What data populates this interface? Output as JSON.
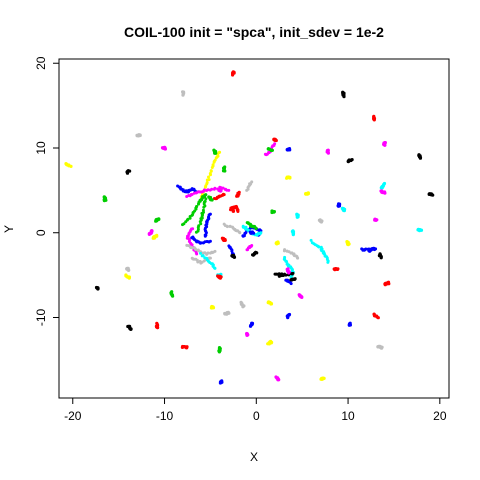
{
  "chart_data": {
    "type": "scatter",
    "title": "COIL-100 init = \"spca\", init_sdev = 1e-2",
    "xlabel": "X",
    "ylabel": "Y",
    "xlim": [
      -21.5,
      21
    ],
    "ylim": [
      -19.5,
      20.5
    ],
    "xticks": [
      -20,
      -10,
      0,
      10,
      20
    ],
    "yticks": [
      -10,
      0,
      10,
      20
    ],
    "xtick_labels": [
      "-20",
      "-10",
      "0",
      "10",
      "20"
    ],
    "ytick_labels": [
      "-10",
      "0",
      "10",
      "20"
    ],
    "grid": false,
    "legend": "none",
    "colors": {
      "black": "#000000",
      "red": "#ff0000",
      "green": "#00cd00",
      "blue": "#0000ff",
      "cyan": "#00ffff",
      "magenta": "#ff00ff",
      "yellow": "#ffff00",
      "gray": "#bebebe"
    },
    "clusters": [
      {
        "x": -2.5,
        "y": 18.8,
        "color": "red"
      },
      {
        "x": -8,
        "y": 16.5,
        "color": "gray"
      },
      {
        "x": 9.5,
        "y": 16.3,
        "color": "black"
      },
      {
        "x": 12.8,
        "y": 13.5,
        "color": "red"
      },
      {
        "x": -12.8,
        "y": 11.5,
        "color": "gray"
      },
      {
        "x": 2,
        "y": 11,
        "color": "red"
      },
      {
        "x": -10,
        "y": 10,
        "color": "magenta"
      },
      {
        "x": -4.5,
        "y": 9.5,
        "color": "green"
      },
      {
        "x": 1.5,
        "y": 9.8,
        "color": "green"
      },
      {
        "x": 3.5,
        "y": 9.8,
        "color": "blue"
      },
      {
        "x": 7.8,
        "y": 9.6,
        "color": "magenta"
      },
      {
        "x": 14,
        "y": 10.5,
        "color": "magenta"
      },
      {
        "x": 10.2,
        "y": 8.5,
        "color": "black"
      },
      {
        "x": 17.8,
        "y": 9,
        "color": "black"
      },
      {
        "x": -20.5,
        "y": 8,
        "color": "yellow"
      },
      {
        "x": -14,
        "y": 7.2,
        "color": "black"
      },
      {
        "x": -3.5,
        "y": 7.5,
        "color": "green"
      },
      {
        "x": 3.5,
        "y": 6.5,
        "color": "yellow"
      },
      {
        "x": 13.8,
        "y": 5.5,
        "color": "cyan"
      },
      {
        "x": 19,
        "y": 4.5,
        "color": "black"
      },
      {
        "x": -16.5,
        "y": 4,
        "color": "green"
      },
      {
        "x": -4,
        "y": 5,
        "color": "magenta"
      },
      {
        "x": -2,
        "y": 4.5,
        "color": "red"
      },
      {
        "x": 5.5,
        "y": 4.6,
        "color": "yellow"
      },
      {
        "x": 13.8,
        "y": 4.8,
        "color": "magenta"
      },
      {
        "x": -5,
        "y": 4,
        "color": "green"
      },
      {
        "x": 9,
        "y": 3.2,
        "color": "blue"
      },
      {
        "x": 9.5,
        "y": 2.8,
        "color": "cyan"
      },
      {
        "x": -2.5,
        "y": 2.8,
        "color": "red"
      },
      {
        "x": 1.8,
        "y": 2.5,
        "color": "green"
      },
      {
        "x": -10.8,
        "y": 1.5,
        "color": "green"
      },
      {
        "x": 4.5,
        "y": 2,
        "color": "cyan"
      },
      {
        "x": 7,
        "y": 1.4,
        "color": "gray"
      },
      {
        "x": 13,
        "y": 1.5,
        "color": "magenta"
      },
      {
        "x": -11.5,
        "y": 0,
        "color": "magenta"
      },
      {
        "x": -11,
        "y": -0.5,
        "color": "yellow"
      },
      {
        "x": 4,
        "y": 0,
        "color": "cyan"
      },
      {
        "x": 10,
        "y": -1.2,
        "color": "yellow"
      },
      {
        "x": 17.8,
        "y": 0.3,
        "color": "cyan"
      },
      {
        "x": -3.5,
        "y": -0.8,
        "color": "red"
      },
      {
        "x": -0.5,
        "y": 0,
        "color": "blue"
      },
      {
        "x": -2.5,
        "y": -2.8,
        "color": "black"
      },
      {
        "x": -0.2,
        "y": -2.5,
        "color": "black"
      },
      {
        "x": 2.3,
        "y": -1.2,
        "color": "yellow"
      },
      {
        "x": 12.5,
        "y": -2,
        "color": "blue"
      },
      {
        "x": 13.5,
        "y": -2.7,
        "color": "black"
      },
      {
        "x": 8.7,
        "y": -4.3,
        "color": "red"
      },
      {
        "x": 14.2,
        "y": -6,
        "color": "red"
      },
      {
        "x": -14,
        "y": -4.3,
        "color": "gray"
      },
      {
        "x": -14,
        "y": -5.2,
        "color": "yellow"
      },
      {
        "x": -4,
        "y": -5,
        "color": "cyan"
      },
      {
        "x": -4,
        "y": -5.2,
        "color": "red"
      },
      {
        "x": 2.5,
        "y": -5,
        "color": "black"
      },
      {
        "x": 3.5,
        "y": -4.5,
        "color": "magenta"
      },
      {
        "x": 4,
        "y": -5.5,
        "color": "black"
      },
      {
        "x": -17.3,
        "y": -6.5,
        "color": "black"
      },
      {
        "x": -9.2,
        "y": -7.2,
        "color": "green"
      },
      {
        "x": 4.8,
        "y": -7.5,
        "color": "magenta"
      },
      {
        "x": -4.8,
        "y": -8.8,
        "color": "yellow"
      },
      {
        "x": -1.5,
        "y": -8.5,
        "color": "gray"
      },
      {
        "x": 1.5,
        "y": -8.3,
        "color": "yellow"
      },
      {
        "x": -3.2,
        "y": -9.5,
        "color": "gray"
      },
      {
        "x": 3.5,
        "y": -9.8,
        "color": "blue"
      },
      {
        "x": 13,
        "y": -9.8,
        "color": "red"
      },
      {
        "x": -13.8,
        "y": -11.2,
        "color": "black"
      },
      {
        "x": -10.8,
        "y": -11,
        "color": "red"
      },
      {
        "x": -0.5,
        "y": -10.8,
        "color": "blue"
      },
      {
        "x": 10.2,
        "y": -10.8,
        "color": "blue"
      },
      {
        "x": -1,
        "y": -12,
        "color": "magenta"
      },
      {
        "x": 1.5,
        "y": -13,
        "color": "yellow"
      },
      {
        "x": -7.8,
        "y": -13.5,
        "color": "red"
      },
      {
        "x": -4,
        "y": -13.8,
        "color": "green"
      },
      {
        "x": 13.5,
        "y": -13.5,
        "color": "gray"
      },
      {
        "x": 7.2,
        "y": -17.2,
        "color": "yellow"
      },
      {
        "x": 2.3,
        "y": -17.2,
        "color": "magenta"
      },
      {
        "x": -3.8,
        "y": -17.6,
        "color": "blue"
      }
    ],
    "trails": [
      {
        "color": "yellow",
        "points": [
          [
            -6,
            4
          ],
          [
            -5.5,
            5.5
          ],
          [
            -5,
            7
          ],
          [
            -4.5,
            8.5
          ],
          [
            -4,
            9.5
          ]
        ]
      },
      {
        "color": "blue",
        "points": [
          [
            -8.5,
            5.5
          ],
          [
            -8,
            5
          ],
          [
            -7.5,
            4.8
          ],
          [
            -7,
            5.2
          ],
          [
            -6.5,
            4.8
          ]
        ]
      },
      {
        "color": "blue",
        "points": [
          [
            -5.5,
            -0.5
          ],
          [
            -5.5,
            0.5
          ],
          [
            -5.3,
            1.5
          ],
          [
            -5,
            2.2
          ]
        ]
      },
      {
        "color": "magenta",
        "points": [
          [
            -7.5,
            4.3
          ],
          [
            -6.5,
            4.8
          ],
          [
            -5.5,
            5
          ],
          [
            -4,
            5.3
          ],
          [
            -3,
            5
          ]
        ]
      },
      {
        "color": "green",
        "points": [
          [
            -8,
            1
          ],
          [
            -7,
            2
          ],
          [
            -6.5,
            3
          ],
          [
            -6,
            4
          ],
          [
            -5.5,
            4.5
          ]
        ]
      },
      {
        "color": "green",
        "points": [
          [
            -6.5,
            0
          ],
          [
            -6,
            1.5
          ],
          [
            -5.8,
            2.5
          ],
          [
            -5.5,
            4
          ]
        ]
      },
      {
        "color": "magenta",
        "points": [
          [
            -7,
            0.5
          ],
          [
            -7.5,
            -0.5
          ],
          [
            -7,
            -1.5
          ],
          [
            -6.5,
            -2.5
          ]
        ]
      },
      {
        "color": "blue",
        "points": [
          [
            -7,
            -0.5
          ],
          [
            -6.5,
            -1
          ],
          [
            -6,
            -1.2
          ],
          [
            -5,
            -1
          ]
        ]
      },
      {
        "color": "gray",
        "points": [
          [
            -7.5,
            -1.5
          ],
          [
            -6.5,
            -2
          ],
          [
            -5.5,
            -2.5
          ],
          [
            -4.5,
            -2.2
          ]
        ]
      },
      {
        "color": "gray",
        "points": [
          [
            -7,
            -3
          ],
          [
            -6,
            -3.5
          ],
          [
            -5,
            -3
          ]
        ]
      },
      {
        "color": "cyan",
        "points": [
          [
            -6,
            -2.5
          ],
          [
            -5,
            -3.5
          ],
          [
            -4.5,
            -4.2
          ]
        ]
      },
      {
        "color": "blue",
        "points": [
          [
            -3,
            -1.5
          ],
          [
            -2.5,
            -2.5
          ]
        ]
      },
      {
        "color": "blue",
        "points": [
          [
            -1.5,
            -0.5
          ],
          [
            -1,
            0.3
          ],
          [
            -0.5,
            0.6
          ],
          [
            0,
            0.5
          ],
          [
            0.5,
            0.2
          ],
          [
            0.2,
            -0.3
          ]
        ]
      },
      {
        "color": "cyan",
        "points": [
          [
            -1.5,
            0.8
          ],
          [
            -0.8,
            0.2
          ],
          [
            0,
            -0.3
          ],
          [
            0.5,
            0
          ]
        ]
      },
      {
        "color": "green",
        "points": [
          [
            -1,
            1.2
          ],
          [
            -0.5,
            0.8
          ],
          [
            0,
            0.5
          ]
        ]
      },
      {
        "color": "red",
        "points": [
          [
            -2.8,
            2.8
          ],
          [
            -2.2,
            3.2
          ],
          [
            -2,
            2.5
          ]
        ]
      },
      {
        "color": "red",
        "points": [
          [
            -4.5,
            4
          ],
          [
            -4,
            4.3
          ],
          [
            -3.5,
            4.5
          ]
        ]
      },
      {
        "color": "gray",
        "points": [
          [
            -3.5,
            1
          ],
          [
            -2.5,
            0.5
          ],
          [
            -1.8,
            0
          ]
        ]
      },
      {
        "color": "gray",
        "points": [
          [
            -1,
            5
          ],
          [
            -0.5,
            6
          ]
        ]
      },
      {
        "color": "magenta",
        "points": [
          [
            1,
            9.2
          ],
          [
            1.5,
            9.6
          ],
          [
            2,
            10.5
          ]
        ]
      },
      {
        "color": "cyan",
        "points": [
          [
            3,
            -3
          ],
          [
            3.5,
            -3.8
          ],
          [
            4,
            -4.5
          ],
          [
            3.8,
            -5.2
          ]
        ]
      },
      {
        "color": "cyan",
        "points": [
          [
            6,
            -1
          ],
          [
            7,
            -1.8
          ],
          [
            7.5,
            -2.5
          ],
          [
            7.8,
            -3.5
          ]
        ]
      },
      {
        "color": "black",
        "points": [
          [
            2,
            -4.8
          ],
          [
            3,
            -5
          ],
          [
            4,
            -4.8
          ]
        ]
      },
      {
        "color": "blue",
        "points": [
          [
            3.2,
            -5.5
          ],
          [
            3.8,
            -6
          ]
        ]
      },
      {
        "color": "blue",
        "points": [
          [
            11.5,
            -2
          ],
          [
            12.2,
            -2
          ],
          [
            13,
            -1.9
          ]
        ]
      },
      {
        "color": "gray",
        "points": [
          [
            3,
            -2
          ],
          [
            4,
            -2.5
          ],
          [
            4.5,
            -3
          ]
        ]
      },
      {
        "color": "magenta",
        "points": [
          [
            -1,
            -2
          ],
          [
            -0.5,
            -1.5
          ]
        ]
      }
    ]
  }
}
